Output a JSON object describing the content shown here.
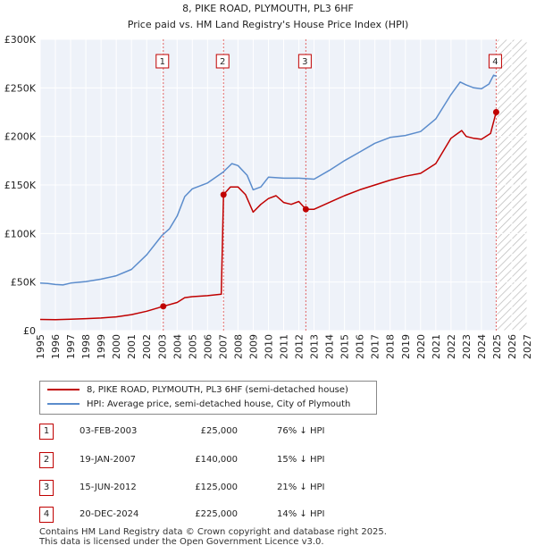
{
  "chart_data": {
    "type": "line",
    "title": "8, PIKE ROAD, PLYMOUTH, PL3 6HF",
    "subtitle": "Price paid vs. HM Land Registry's House Price Index (HPI)",
    "xlabel": "",
    "ylabel": "",
    "xlim": [
      1995,
      2027
    ],
    "ylim": [
      0,
      300000
    ],
    "x_ticks": [
      1995,
      1996,
      1997,
      1998,
      1999,
      2000,
      2001,
      2002,
      2003,
      2004,
      2005,
      2006,
      2007,
      2008,
      2009,
      2010,
      2011,
      2012,
      2013,
      2014,
      2015,
      2016,
      2017,
      2018,
      2019,
      2020,
      2021,
      2022,
      2023,
      2024,
      2025,
      2026,
      2027
    ],
    "y_ticks": [
      {
        "value": 0,
        "label": "£0"
      },
      {
        "value": 50000,
        "label": "£50K"
      },
      {
        "value": 100000,
        "label": "£100K"
      },
      {
        "value": 150000,
        "label": "£150K"
      },
      {
        "value": 200000,
        "label": "£200K"
      },
      {
        "value": 250000,
        "label": "£250K"
      },
      {
        "value": 300000,
        "label": "£300K"
      }
    ],
    "grid": true,
    "forecast_start": 2025.0,
    "series": [
      {
        "name": "8, PIKE ROAD, PLYMOUTH, PL3 6HF (semi-detached house)",
        "color": "#c00000",
        "points": [
          [
            1995.0,
            11500
          ],
          [
            1996.0,
            11200
          ],
          [
            1997.0,
            11800
          ],
          [
            1998.0,
            12300
          ],
          [
            1999.0,
            13000
          ],
          [
            2000.0,
            14200
          ],
          [
            2001.0,
            16500
          ],
          [
            2002.0,
            20000
          ],
          [
            2003.09,
            25000
          ],
          [
            2004.0,
            29000
          ],
          [
            2004.5,
            34000
          ],
          [
            2005.0,
            35000
          ],
          [
            2006.0,
            36000
          ],
          [
            2006.9,
            37500
          ],
          [
            2007.05,
            140000
          ],
          [
            2007.5,
            148000
          ],
          [
            2008.0,
            148000
          ],
          [
            2008.5,
            140000
          ],
          [
            2009.0,
            122000
          ],
          [
            2009.5,
            130000
          ],
          [
            2010.0,
            136000
          ],
          [
            2010.5,
            139000
          ],
          [
            2011.0,
            132000
          ],
          [
            2011.5,
            130000
          ],
          [
            2012.0,
            133000
          ],
          [
            2012.46,
            125000
          ],
          [
            2013.0,
            125000
          ],
          [
            2014.0,
            132000
          ],
          [
            2015.0,
            139000
          ],
          [
            2016.0,
            145000
          ],
          [
            2017.0,
            150000
          ],
          [
            2018.0,
            155000
          ],
          [
            2019.0,
            159000
          ],
          [
            2020.0,
            162000
          ],
          [
            2021.0,
            172000
          ],
          [
            2022.0,
            198000
          ],
          [
            2022.7,
            206000
          ],
          [
            2023.0,
            200000
          ],
          [
            2023.5,
            198000
          ],
          [
            2024.0,
            197000
          ],
          [
            2024.6,
            203000
          ],
          [
            2024.97,
            225000
          ],
          [
            2025.0,
            225000
          ]
        ]
      },
      {
        "name": "HPI: Average price, semi-detached house, City of Plymouth",
        "color": "#5b8ccc",
        "points": [
          [
            1995.0,
            49000
          ],
          [
            1995.5,
            48500
          ],
          [
            1996.0,
            47500
          ],
          [
            1996.5,
            47000
          ],
          [
            1997.0,
            49000
          ],
          [
            1998.0,
            50500
          ],
          [
            1999.0,
            53000
          ],
          [
            2000.0,
            56500
          ],
          [
            2001.0,
            63000
          ],
          [
            2002.0,
            78000
          ],
          [
            2003.0,
            98000
          ],
          [
            2003.5,
            105000
          ],
          [
            2004.0,
            118000
          ],
          [
            2004.5,
            138000
          ],
          [
            2005.0,
            146000
          ],
          [
            2006.0,
            152000
          ],
          [
            2007.0,
            163000
          ],
          [
            2007.6,
            172000
          ],
          [
            2008.0,
            170000
          ],
          [
            2008.6,
            160000
          ],
          [
            2009.0,
            145000
          ],
          [
            2009.5,
            148000
          ],
          [
            2010.0,
            158000
          ],
          [
            2011.0,
            157000
          ],
          [
            2012.0,
            157000
          ],
          [
            2013.0,
            156000
          ],
          [
            2014.0,
            165000
          ],
          [
            2015.0,
            175000
          ],
          [
            2016.0,
            184000
          ],
          [
            2017.0,
            193000
          ],
          [
            2018.0,
            199000
          ],
          [
            2019.0,
            201000
          ],
          [
            2020.0,
            205000
          ],
          [
            2021.0,
            218000
          ],
          [
            2022.0,
            243000
          ],
          [
            2022.6,
            256000
          ],
          [
            2023.0,
            253000
          ],
          [
            2023.5,
            250000
          ],
          [
            2024.0,
            249000
          ],
          [
            2024.5,
            254000
          ],
          [
            2024.8,
            263000
          ],
          [
            2025.0,
            262000
          ]
        ]
      }
    ],
    "transactions": [
      {
        "id": "1",
        "x": 2003.09,
        "price": 25000
      },
      {
        "id": "2",
        "x": 2007.05,
        "price": 140000
      },
      {
        "id": "3",
        "x": 2012.46,
        "price": 125000
      },
      {
        "id": "4",
        "x": 2024.97,
        "price": 225000
      }
    ]
  },
  "legend": {
    "property_label": "8, PIKE ROAD, PLYMOUTH, PL3 6HF (semi-detached house)",
    "hpi_label": "HPI: Average price, semi-detached house, City of Plymouth"
  },
  "table": [
    {
      "num": "1",
      "date": "03-FEB-2003",
      "price": "£25,000",
      "hpi": "76% ↓ HPI"
    },
    {
      "num": "2",
      "date": "19-JAN-2007",
      "price": "£140,000",
      "hpi": "15% ↓ HPI"
    },
    {
      "num": "3",
      "date": "15-JUN-2012",
      "price": "£125,000",
      "hpi": "21% ↓ HPI"
    },
    {
      "num": "4",
      "date": "20-DEC-2024",
      "price": "£225,000",
      "hpi": "14% ↓ HPI"
    }
  ],
  "footer": {
    "line1": "Contains HM Land Registry data © Crown copyright and database right 2025.",
    "line2": "This data is licensed under the Open Government Licence v3.0."
  }
}
